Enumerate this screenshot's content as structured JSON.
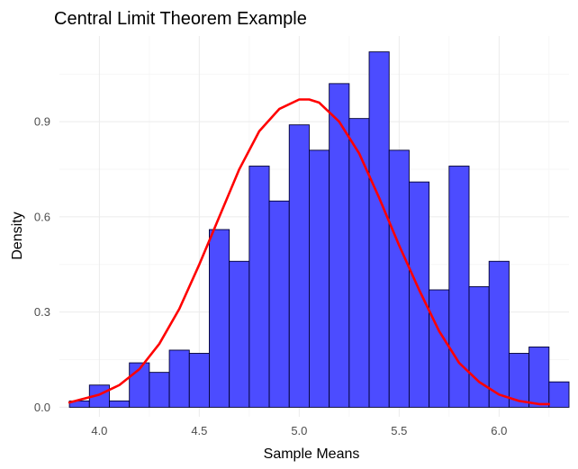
{
  "chart_data": {
    "type": "bar",
    "title": "Central Limit Theorem Example",
    "xlabel": "Sample Means",
    "ylabel": "Density",
    "xlim": [
      3.8,
      6.35
    ],
    "ylim": [
      -0.03,
      1.17
    ],
    "xticks": [
      4.0,
      4.5,
      5.0,
      5.5,
      6.0
    ],
    "xtick_labels": [
      "4.0",
      "4.5",
      "5.0",
      "5.5",
      "6.0"
    ],
    "yticks": [
      0.0,
      0.3,
      0.6,
      0.9
    ],
    "ytick_labels": [
      "0.0",
      "0.3",
      "0.6",
      "0.9"
    ],
    "grid": true,
    "legend": "none",
    "bin_width": 0.1,
    "histogram": {
      "name": "",
      "color": "#4c4cff",
      "border_color": "#000033",
      "bins": [
        {
          "x0": 3.85,
          "x1": 3.95,
          "density": 0.02
        },
        {
          "x0": 3.95,
          "x1": 4.05,
          "density": 0.07
        },
        {
          "x0": 4.05,
          "x1": 4.15,
          "density": 0.02
        },
        {
          "x0": 4.15,
          "x1": 4.25,
          "density": 0.14
        },
        {
          "x0": 4.25,
          "x1": 4.35,
          "density": 0.11
        },
        {
          "x0": 4.35,
          "x1": 4.45,
          "density": 0.18
        },
        {
          "x0": 4.45,
          "x1": 4.55,
          "density": 0.17
        },
        {
          "x0": 4.55,
          "x1": 4.65,
          "density": 0.56
        },
        {
          "x0": 4.65,
          "x1": 4.75,
          "density": 0.46
        },
        {
          "x0": 4.75,
          "x1": 4.85,
          "density": 0.76
        },
        {
          "x0": 4.85,
          "x1": 4.95,
          "density": 0.65
        },
        {
          "x0": 4.95,
          "x1": 5.05,
          "density": 0.89
        },
        {
          "x0": 5.05,
          "x1": 5.15,
          "density": 0.81
        },
        {
          "x0": 5.15,
          "x1": 5.25,
          "density": 1.02
        },
        {
          "x0": 5.25,
          "x1": 5.35,
          "density": 0.91
        },
        {
          "x0": 5.35,
          "x1": 5.45,
          "density": 1.12
        },
        {
          "x0": 5.45,
          "x1": 5.55,
          "density": 0.81
        },
        {
          "x0": 5.55,
          "x1": 5.65,
          "density": 0.71
        },
        {
          "x0": 5.65,
          "x1": 5.75,
          "density": 0.37
        },
        {
          "x0": 5.75,
          "x1": 5.85,
          "density": 0.76
        },
        {
          "x0": 5.85,
          "x1": 5.95,
          "density": 0.38
        },
        {
          "x0": 5.95,
          "x1": 6.05,
          "density": 0.46
        },
        {
          "x0": 6.05,
          "x1": 6.15,
          "density": 0.17
        },
        {
          "x0": 6.15,
          "x1": 6.25,
          "density": 0.19
        },
        {
          "x0": 6.25,
          "x1": 6.35,
          "density": 0.08
        }
      ]
    },
    "density_curve": {
      "name": "",
      "color": "#ff0000",
      "type": "line",
      "x": [
        3.85,
        4.0,
        4.1,
        4.2,
        4.3,
        4.4,
        4.5,
        4.6,
        4.7,
        4.8,
        4.9,
        5.0,
        5.05,
        5.1,
        5.2,
        5.3,
        5.4,
        5.5,
        5.6,
        5.7,
        5.8,
        5.9,
        6.0,
        6.1,
        6.2,
        6.25
      ],
      "y": [
        0.015,
        0.04,
        0.07,
        0.12,
        0.2,
        0.31,
        0.45,
        0.6,
        0.75,
        0.87,
        0.94,
        0.97,
        0.97,
        0.96,
        0.9,
        0.8,
        0.66,
        0.51,
        0.37,
        0.24,
        0.14,
        0.08,
        0.04,
        0.02,
        0.01,
        0.01
      ]
    }
  }
}
